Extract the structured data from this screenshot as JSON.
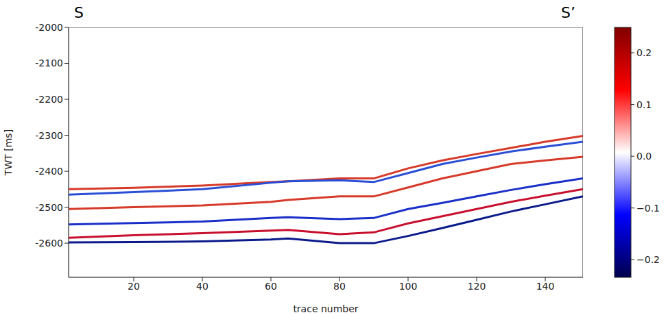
{
  "chart_data": {
    "type": "line",
    "annotations": [
      "S",
      "S’"
    ],
    "x_label": "trace number",
    "y_label": "TWT [ms]",
    "x": [
      1,
      20,
      40,
      60,
      65,
      80,
      90,
      100,
      110,
      120,
      130,
      140,
      151
    ],
    "series": [
      {
        "color": "#d63a2a",
        "values": [
          -2450,
          -2446,
          -2440,
          -2430,
          -2428,
          -2420,
          -2420,
          -2392,
          -2370,
          -2352,
          -2335,
          -2318,
          -2302
        ]
      },
      {
        "color": "#2a4fd6",
        "values": [
          -2465,
          -2458,
          -2450,
          -2432,
          -2428,
          -2425,
          -2430,
          -2405,
          -2380,
          -2362,
          -2345,
          -2332,
          -2318
        ]
      },
      {
        "color": "#d63a2a",
        "values": [
          -2505,
          -2500,
          -2495,
          -2485,
          -2480,
          -2470,
          -2470,
          -2445,
          -2420,
          -2400,
          -2380,
          -2370,
          -2360
        ]
      },
      {
        "color": "#1a2fc8",
        "values": [
          -2548,
          -2544,
          -2540,
          -2530,
          -2528,
          -2533,
          -2530,
          -2505,
          -2488,
          -2470,
          -2452,
          -2436,
          -2420
        ]
      },
      {
        "color": "#c8102e",
        "values": [
          -2585,
          -2578,
          -2572,
          -2565,
          -2563,
          -2575,
          -2570,
          -2545,
          -2525,
          -2505,
          -2485,
          -2468,
          -2450
        ]
      },
      {
        "color": "#0a1a8a",
        "values": [
          -2598,
          -2597,
          -2595,
          -2590,
          -2587,
          -2600,
          -2600,
          -2580,
          -2558,
          -2535,
          -2512,
          -2492,
          -2470
        ]
      }
    ],
    "xlim": [
      1,
      151
    ],
    "ylim": [
      -2695,
      -2000
    ],
    "xticks": [
      20,
      40,
      60,
      80,
      100,
      120,
      140
    ],
    "yticks": [
      -2000,
      -2100,
      -2200,
      -2300,
      -2400,
      -2500,
      -2600
    ],
    "colorbar": {
      "range": [
        -0.234,
        0.249
      ],
      "ticks": [
        {
          "value": -0.2,
          "label": "−0.2"
        },
        {
          "value": -0.1,
          "label": "−0.1"
        },
        {
          "value": 0,
          "label": "0.0"
        },
        0.1,
        0.2
      ]
    }
  }
}
